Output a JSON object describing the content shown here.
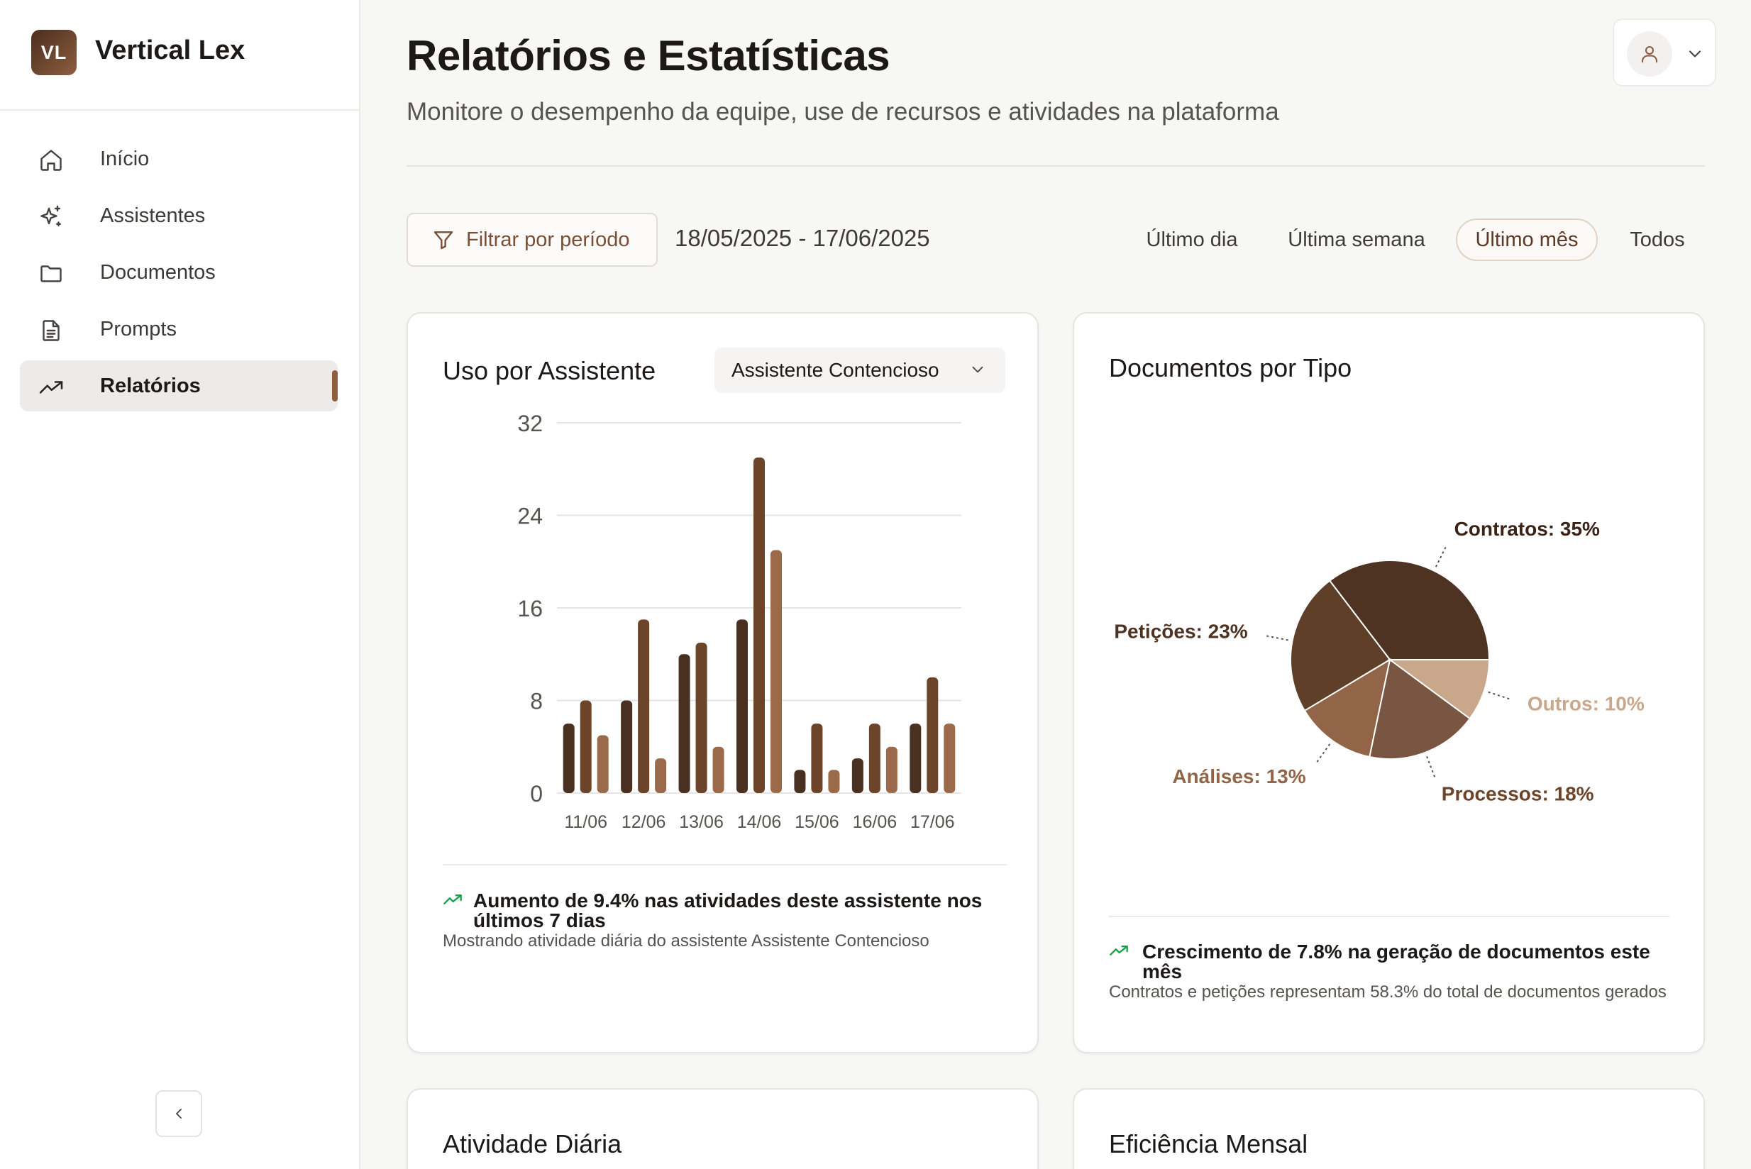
{
  "brand": {
    "logo_initials": "VL",
    "name": "Vertical Lex"
  },
  "sidebar": {
    "items": [
      {
        "label": "Início",
        "icon": "home-icon",
        "active": false
      },
      {
        "label": "Assistentes",
        "icon": "sparkle-icon",
        "active": false
      },
      {
        "label": "Documentos",
        "icon": "folder-icon",
        "active": false
      },
      {
        "label": "Prompts",
        "icon": "file-text-icon",
        "active": false
      },
      {
        "label": "Relatórios",
        "icon": "trending-up-icon",
        "active": true
      }
    ],
    "collapse_icon": "chevron-left-icon"
  },
  "header": {
    "title": "Relatórios e Estatísticas",
    "subtitle": "Monitore o desempenho da equipe, use de recursos e atividades na plataforma",
    "user_icon": "user-icon"
  },
  "filters": {
    "filter_label": "Filtrar por período",
    "date_range": "18/05/2025 - 17/06/2025",
    "periods": [
      "Último dia",
      "Última semana",
      "Último mês",
      "Todos"
    ],
    "active_period": "Último mês"
  },
  "usage_card": {
    "title": "Uso por Assistente",
    "selected_assistant": "Assistente Contencioso",
    "footer_headline": "Aumento de 9.4% nas atividades deste assistente nos últimos 7 dias",
    "footer_note": "Mostrando atividade diária do assistente Assistente Contencioso"
  },
  "documents_card": {
    "title": "Documentos por Tipo",
    "footer_headline": "Crescimento de 7.8% na geração de documentos este mês",
    "footer_note": "Contratos e petições representam 58.3% do total de documentos gerados"
  },
  "activity_card": {
    "title": "Atividade Diária"
  },
  "efficiency_card": {
    "title": "Eficiência Mensal"
  },
  "colors": {
    "accent": "#8f5f42",
    "trend_up": "#16a34a",
    "bar_series": [
      "#4a3020",
      "#6b4429",
      "#9a6a4a"
    ],
    "pie": [
      "#4e3222",
      "#603f28",
      "#936548",
      "#785641",
      "#c8a78b"
    ]
  },
  "chart_data": [
    {
      "type": "bar",
      "categories": [
        "11/06",
        "12/06",
        "13/06",
        "14/06",
        "15/06",
        "16/06",
        "17/06"
      ],
      "series": [
        {
          "values": [
            6,
            8,
            12,
            15,
            2,
            3,
            6
          ]
        },
        {
          "values": [
            8,
            15,
            13,
            29,
            6,
            6,
            10
          ]
        },
        {
          "values": [
            5,
            3,
            4,
            21,
            2,
            4,
            6
          ]
        }
      ],
      "ylim": [
        0,
        32
      ],
      "yticks": [
        0,
        8,
        16,
        24,
        32
      ],
      "grid": true
    },
    {
      "type": "pie",
      "slices": [
        {
          "label": "Contratos",
          "value": 35,
          "text": "Contratos: 35%"
        },
        {
          "label": "Petições",
          "value": 23,
          "text": "Petições: 23%"
        },
        {
          "label": "Análises",
          "value": 13,
          "text": "Análises: 13%"
        },
        {
          "label": "Processos",
          "value": 18,
          "text": "Processos: 18%"
        },
        {
          "label": "Outros",
          "value": 10,
          "text": "Outros: 10%"
        }
      ]
    }
  ]
}
